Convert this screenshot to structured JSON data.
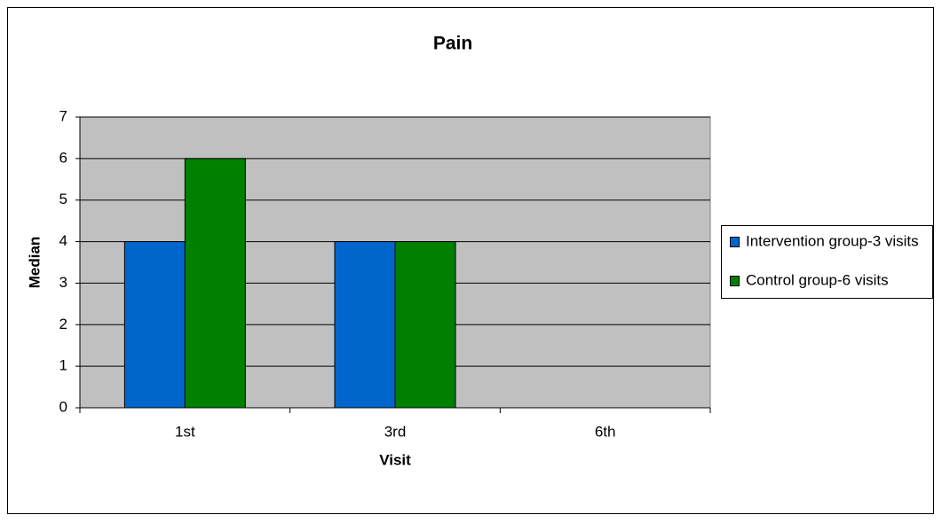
{
  "chart_data": {
    "type": "bar",
    "title": "Pain",
    "x_label": "Visit",
    "y_label": "Median",
    "categories": [
      "1st",
      "3rd",
      "6th"
    ],
    "series": [
      {
        "name": "Intervention group-3 visits",
        "color": "#0066cc",
        "values": [
          4,
          4,
          null
        ]
      },
      {
        "name": "Control group-6 visits",
        "color": "#008000",
        "values": [
          6,
          4,
          null
        ]
      }
    ],
    "ylim": [
      0,
      7
    ],
    "yticks": [
      0,
      1,
      2,
      3,
      4,
      5,
      6,
      7
    ],
    "grid": true,
    "legend": "right"
  }
}
